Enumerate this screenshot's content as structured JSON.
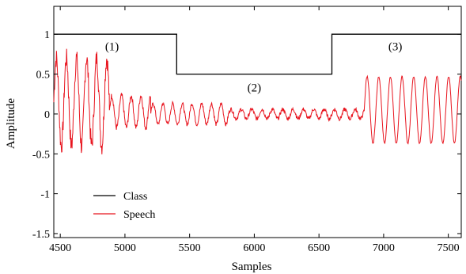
{
  "chart_data": {
    "type": "line",
    "xlabel": "Samples",
    "ylabel": "Amplitude",
    "xlim": [
      4450,
      7600
    ],
    "ylim": [
      -1.55,
      1.35
    ],
    "xticks": [
      4500,
      5000,
      5500,
      6000,
      6500,
      7000,
      7500
    ],
    "yticks": [
      1,
      0.5,
      0,
      -0.5,
      -1,
      -1.5
    ],
    "xtick_labels": [
      "4500",
      "5000",
      "5500",
      "6000",
      "6500",
      "7000",
      "7500"
    ],
    "ytick_labels": [
      "1",
      "0.5",
      "0",
      "-0.5",
      "-1",
      "-1.5"
    ],
    "grid": false,
    "legend": {
      "placement": "bottom-left"
    },
    "series": [
      {
        "name": "Class",
        "color": "#000000",
        "x": [
          4450,
          5400,
          5400,
          6600,
          6600,
          7600
        ],
        "y": [
          1,
          1,
          0.5,
          0.5,
          1,
          1
        ]
      },
      {
        "name": "Speech",
        "color": "#e8141e",
        "segments": [
          {
            "x_start": 4450,
            "x_end": 4880,
            "amplitude": 0.55,
            "period": 78,
            "offset": 0.15,
            "noise": 0.25
          },
          {
            "x_start": 4880,
            "x_end": 5200,
            "amplitude": 0.2,
            "period": 75,
            "offset": 0.03,
            "noise": 0.08
          },
          {
            "x_start": 5200,
            "x_end": 5800,
            "amplitude": 0.13,
            "period": 75,
            "offset": 0.0,
            "noise": 0.05
          },
          {
            "x_start": 5800,
            "x_end": 6850,
            "amplitude": 0.06,
            "period": 80,
            "offset": 0.0,
            "noise": 0.05
          },
          {
            "x_start": 6850,
            "x_end": 7600,
            "amplitude": 0.42,
            "period": 90,
            "offset": 0.05,
            "noise": 0.02
          }
        ]
      }
    ],
    "annotations": [
      {
        "text": "(1)",
        "x": 4900,
        "y": 0.85
      },
      {
        "text": "(2)",
        "x": 6000,
        "y": 0.33
      },
      {
        "text": "(3)",
        "x": 7090,
        "y": 0.85
      }
    ]
  }
}
